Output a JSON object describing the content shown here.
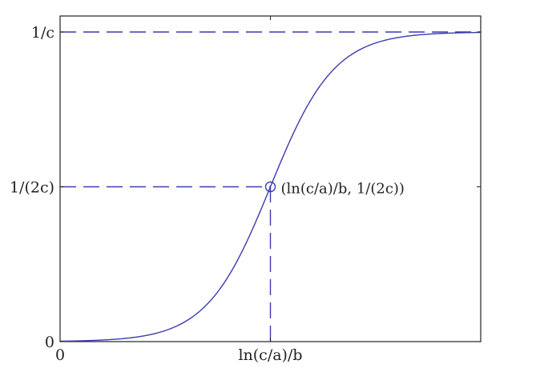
{
  "chart_data": {
    "type": "line",
    "title": "",
    "xlabel": "",
    "ylabel": "",
    "x_domain": [
      0,
      2
    ],
    "y_domain": [
      0,
      1
    ],
    "grid": false,
    "legend": "none",
    "x_ticks": [
      {
        "value": 0,
        "label": "0"
      },
      {
        "value": 1,
        "label": "ln(c/a)/b"
      }
    ],
    "y_ticks": [
      {
        "value": 0,
        "label": "0"
      },
      {
        "value": 0.5,
        "label": "1/(2c)"
      },
      {
        "value": 1,
        "label": "1/c"
      }
    ],
    "curve": {
      "form": "logistic",
      "midpoint_x": 1,
      "steepness": 6.6,
      "asymptote": 1
    },
    "reference_lines": [
      {
        "kind": "horizontal",
        "y": 1,
        "style": "dashed"
      },
      {
        "kind": "horizontal",
        "y": 0.5,
        "from_x": 0,
        "to_x": 1,
        "style": "dashed"
      },
      {
        "kind": "vertical",
        "x": 1,
        "from_y": 0,
        "to_y": 0.5,
        "style": "dashed"
      }
    ],
    "marker": {
      "x": 1,
      "y": 0.5,
      "shape": "circle",
      "label": "(ln(c/a)/b, 1/(2c))"
    },
    "colors": {
      "curve": "#3b3bb0",
      "dashed_lines": "#3b3bb0",
      "axes": "#222222",
      "text": "#222222"
    }
  }
}
